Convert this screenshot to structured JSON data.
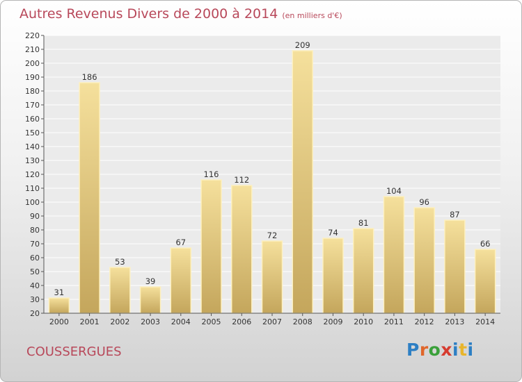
{
  "title": "Autres Revenus Divers de 2000 à 2014",
  "unit": "(en milliers d'€)",
  "commune": "COUSSERGUES",
  "brand": "Proxiti",
  "colors": {
    "title": "#b8485a",
    "bar_light": "#f5e09c",
    "bar_dark": "#c4a65c",
    "bar_edge": "#fdf0bf",
    "brand": [
      "#2d7fc4",
      "#e0662a",
      "#3aa03a",
      "#d63b2f",
      "#2d7fc4",
      "#e8b52c",
      "#2d7fc4"
    ]
  },
  "chart_data": {
    "type": "bar",
    "title": "Autres Revenus Divers de 2000 à 2014",
    "ylabel": "",
    "xlabel": "",
    "categories": [
      "2000",
      "2001",
      "2002",
      "2003",
      "2004",
      "2005",
      "2006",
      "2007",
      "2008",
      "2009",
      "2010",
      "2011",
      "2012",
      "2013",
      "2014"
    ],
    "values": [
      31,
      186,
      53,
      39,
      67,
      116,
      112,
      72,
      209,
      74,
      81,
      104,
      96,
      87,
      66
    ],
    "ylim": [
      20,
      220
    ],
    "yticks": [
      20,
      30,
      40,
      50,
      60,
      70,
      80,
      90,
      100,
      110,
      120,
      130,
      140,
      150,
      160,
      170,
      180,
      190,
      200,
      210,
      220
    ],
    "grid": true,
    "data_labels": true
  }
}
